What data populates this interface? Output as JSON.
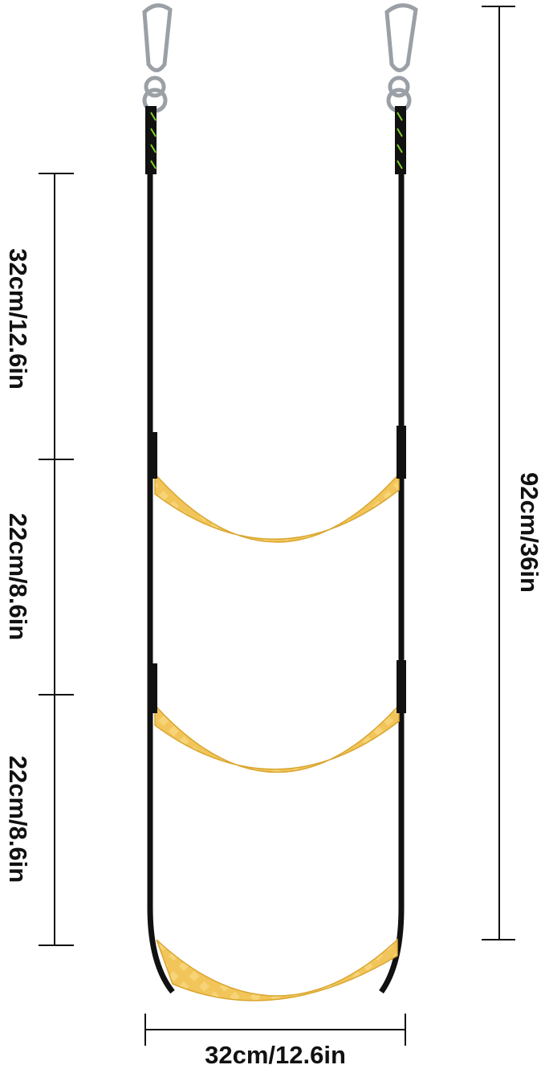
{
  "dimensions": {
    "left": [
      "32cm/12.6in",
      "22cm/8.6in",
      "22cm/8.6in"
    ],
    "total_height": "92cm/36in",
    "width": "32cm/12.6in"
  }
}
